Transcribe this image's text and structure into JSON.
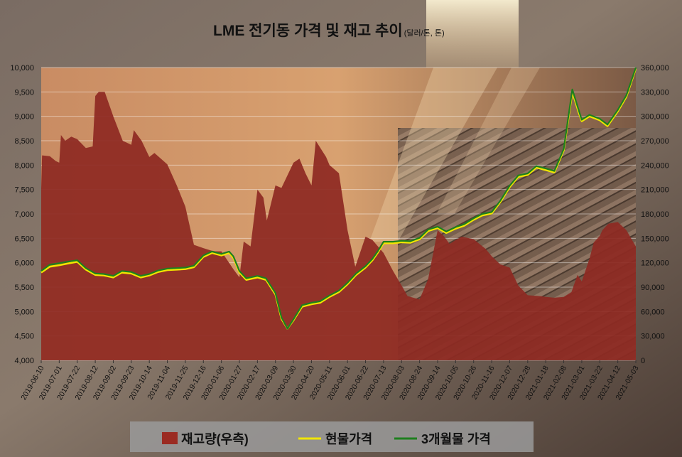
{
  "title": {
    "main": "LME 전기동 가격 및 재고 추이",
    "units": "(달러/톤, 톤)"
  },
  "legend": {
    "items": [
      {
        "label": "재고량(우측)",
        "color": "#9b2b22",
        "kind": "box"
      },
      {
        "label": "현물가격",
        "color": "#f2e600",
        "kind": "line"
      },
      {
        "label": "3개월물 가격",
        "color": "#1e7f1e",
        "kind": "line"
      }
    ]
  },
  "colors": {
    "inventory_fill": "#8e2a22",
    "spot_line": "#f2e600",
    "three_month_line": "#1e7f1e",
    "grid": "#ffffff",
    "axis_text": "#111111"
  },
  "chart_data": {
    "type": "area",
    "title": "LME 전기동 가격 및 재고 추이",
    "x_tick_labels": [
      "2019-06-10",
      "2019-07-01",
      "2019-07-22",
      "2019-08-12",
      "2019-09-02",
      "2019-09-23",
      "2019-10-14",
      "2019-11-04",
      "2019-11-25",
      "2019-12-16",
      "2020-01-06",
      "2020-01-27",
      "2020-02-17",
      "2020-03-09",
      "2020-03-30",
      "2020-04-20",
      "2020-05-11",
      "2020-06-01",
      "2020-06-22",
      "2020-07-13",
      "2020-08-03",
      "2020-08-24",
      "2020-09-14",
      "2020-10-05",
      "2020-10-26",
      "2020-11-16",
      "2020-12-07",
      "2020-12-28",
      "2021-01-18",
      "2021-02-08",
      "2021-03-01",
      "2021-03-22",
      "2021-04-12",
      "2021-05-03"
    ],
    "y_left": {
      "label": "",
      "range": [
        4000,
        10000
      ],
      "ticks": [
        "4,000",
        "4,500",
        "5,000",
        "5,500",
        "6,000",
        "6,500",
        "7,000",
        "7,500",
        "8,000",
        "8,500",
        "9,000",
        "9,500",
        "10,000"
      ]
    },
    "y_right": {
      "label": "",
      "range": [
        0,
        360000
      ],
      "ticks": [
        "0",
        "30,000",
        "60,000",
        "90,000",
        "120,000",
        "150,000",
        "180,000",
        "210,000",
        "240,000",
        "270,000",
        "300,000",
        "330,000",
        "360,000"
      ]
    },
    "grid": true,
    "legend_position": "bottom",
    "series": [
      {
        "name": "재고량(우측)",
        "axis": "right",
        "type": "area",
        "x": [
          "2019-06-10",
          "2019-06-11",
          "2019-06-20",
          "2019-06-27",
          "2019-07-01",
          "2019-07-03",
          "2019-07-08",
          "2019-07-15",
          "2019-07-22",
          "2019-08-01",
          "2019-08-09",
          "2019-08-12",
          "2019-08-16",
          "2019-08-23",
          "2019-09-02",
          "2019-09-13",
          "2019-09-23",
          "2019-09-26",
          "2019-10-05",
          "2019-10-14",
          "2019-10-20",
          "2019-11-04",
          "2019-11-15",
          "2019-11-25",
          "2019-12-05",
          "2019-12-16",
          "2019-12-25",
          "2019-12-30",
          "2020-01-06",
          "2020-01-20",
          "2020-01-27",
          "2020-02-01",
          "2020-02-09",
          "2020-02-17",
          "2020-02-24",
          "2020-02-28",
          "2020-03-09",
          "2020-03-16",
          "2020-03-30",
          "2020-04-06",
          "2020-04-13",
          "2020-04-20",
          "2020-04-25",
          "2020-05-07",
          "2020-05-11",
          "2020-05-22",
          "2020-06-01",
          "2020-06-10",
          "2020-06-22",
          "2020-06-30",
          "2020-07-13",
          "2020-07-24",
          "2020-08-03",
          "2020-08-10",
          "2020-08-20",
          "2020-08-24",
          "2020-09-03",
          "2020-09-14",
          "2020-09-21",
          "2020-09-28",
          "2020-10-05",
          "2020-10-12",
          "2020-10-26",
          "2020-11-09",
          "2020-11-16",
          "2020-11-26",
          "2020-12-07",
          "2020-12-17",
          "2020-12-28",
          "2021-01-11",
          "2021-01-18",
          "2021-01-28",
          "2021-02-08",
          "2021-02-17",
          "2021-02-24",
          "2021-03-01",
          "2021-03-10",
          "2021-03-15",
          "2021-03-22",
          "2021-03-25",
          "2021-04-01",
          "2021-04-12",
          "2021-04-22",
          "2021-05-03"
        ],
        "values": [
          211000,
          252000,
          251000,
          245000,
          243000,
          277000,
          270000,
          275000,
          272000,
          261000,
          263000,
          325000,
          330000,
          330000,
          300000,
          270000,
          265000,
          283000,
          270000,
          250000,
          255000,
          241000,
          215000,
          189000,
          142000,
          138000,
          135000,
          134000,
          134000,
          112000,
          102000,
          146000,
          140000,
          210000,
          200000,
          172000,
          215000,
          212000,
          243000,
          248000,
          230000,
          215000,
          270000,
          250000,
          240000,
          230000,
          160000,
          115000,
          152000,
          148000,
          132000,
          110000,
          92000,
          79000,
          76000,
          75000,
          100000,
          160000,
          153000,
          143000,
          148000,
          152000,
          149000,
          137000,
          128000,
          118000,
          114000,
          92000,
          80000,
          79000,
          78000,
          77000,
          78000,
          84000,
          105000,
          97000,
          125000,
          145000,
          153000,
          160000,
          168000,
          170000,
          160000,
          140000
        ]
      },
      {
        "name": "현물가격",
        "axis": "left",
        "type": "line",
        "x": [
          "2019-06-10",
          "2019-06-20",
          "2019-07-01",
          "2019-07-10",
          "2019-07-22",
          "2019-08-01",
          "2019-08-12",
          "2019-08-22",
          "2019-09-02",
          "2019-09-12",
          "2019-09-23",
          "2019-10-04",
          "2019-10-14",
          "2019-10-24",
          "2019-11-04",
          "2019-11-15",
          "2019-11-25",
          "2019-12-05",
          "2019-12-16",
          "2019-12-26",
          "2020-01-06",
          "2020-01-15",
          "2020-01-20",
          "2020-01-27",
          "2020-02-04",
          "2020-02-17",
          "2020-02-27",
          "2020-03-09",
          "2020-03-16",
          "2020-03-23",
          "2020-03-30",
          "2020-04-09",
          "2020-04-20",
          "2020-04-30",
          "2020-05-11",
          "2020-05-22",
          "2020-06-01",
          "2020-06-11",
          "2020-06-22",
          "2020-06-30",
          "2020-07-06",
          "2020-07-13",
          "2020-07-24",
          "2020-08-03",
          "2020-08-13",
          "2020-08-24",
          "2020-09-03",
          "2020-09-14",
          "2020-09-24",
          "2020-10-05",
          "2020-10-15",
          "2020-10-26",
          "2020-11-05",
          "2020-11-16",
          "2020-11-26",
          "2020-12-07",
          "2020-12-17",
          "2020-12-28",
          "2021-01-07",
          "2021-01-18",
          "2021-01-28",
          "2021-02-08",
          "2021-02-18",
          "2021-02-25",
          "2021-03-01",
          "2021-03-10",
          "2021-03-22",
          "2021-03-31",
          "2021-04-12",
          "2021-04-22",
          "2021-05-03"
        ],
        "values": [
          5800,
          5920,
          5950,
          5980,
          6020,
          5860,
          5750,
          5740,
          5700,
          5800,
          5780,
          5700,
          5740,
          5810,
          5850,
          5860,
          5870,
          5910,
          6120,
          6200,
          6150,
          6200,
          6100,
          5800,
          5650,
          5700,
          5650,
          5350,
          4850,
          4650,
          4820,
          5100,
          5150,
          5180,
          5300,
          5400,
          5560,
          5750,
          5900,
          6050,
          6200,
          6400,
          6400,
          6420,
          6410,
          6480,
          6650,
          6710,
          6610,
          6700,
          6760,
          6880,
          6970,
          7010,
          7240,
          7550,
          7760,
          7800,
          7950,
          7900,
          7850,
          8300,
          9500,
          9100,
          8900,
          9000,
          8920,
          8800,
          9100,
          9400,
          9980
        ]
      },
      {
        "name": "3개월물 가격",
        "axis": "left",
        "type": "line",
        "x": [
          "2019-06-10",
          "2019-06-20",
          "2019-07-01",
          "2019-07-10",
          "2019-07-22",
          "2019-08-01",
          "2019-08-12",
          "2019-08-22",
          "2019-09-02",
          "2019-09-12",
          "2019-09-23",
          "2019-10-04",
          "2019-10-14",
          "2019-10-24",
          "2019-11-04",
          "2019-11-15",
          "2019-11-25",
          "2019-12-05",
          "2019-12-16",
          "2019-12-26",
          "2020-01-06",
          "2020-01-15",
          "2020-01-20",
          "2020-01-27",
          "2020-02-04",
          "2020-02-17",
          "2020-02-27",
          "2020-03-09",
          "2020-03-16",
          "2020-03-23",
          "2020-03-30",
          "2020-04-09",
          "2020-04-20",
          "2020-04-30",
          "2020-05-11",
          "2020-05-22",
          "2020-06-01",
          "2020-06-11",
          "2020-06-22",
          "2020-06-30",
          "2020-07-06",
          "2020-07-13",
          "2020-07-24",
          "2020-08-03",
          "2020-08-13",
          "2020-08-24",
          "2020-09-03",
          "2020-09-14",
          "2020-09-24",
          "2020-10-05",
          "2020-10-15",
          "2020-10-26",
          "2020-11-05",
          "2020-11-16",
          "2020-11-26",
          "2020-12-07",
          "2020-12-17",
          "2020-12-28",
          "2021-01-07",
          "2021-01-18",
          "2021-01-28",
          "2021-02-08",
          "2021-02-18",
          "2021-02-25",
          "2021-03-01",
          "2021-03-10",
          "2021-03-22",
          "2021-03-31",
          "2021-04-12",
          "2021-04-22",
          "2021-05-03"
        ],
        "values": [
          5830,
          5960,
          5990,
          6020,
          6050,
          5890,
          5780,
          5770,
          5730,
          5830,
          5810,
          5730,
          5770,
          5840,
          5880,
          5890,
          5900,
          5940,
          6150,
          6230,
          6180,
          6230,
          6130,
          5830,
          5680,
          5730,
          5680,
          5380,
          4880,
          4650,
          4840,
          5130,
          5180,
          5210,
          5330,
          5430,
          5590,
          5780,
          5930,
          6080,
          6230,
          6430,
          6430,
          6450,
          6440,
          6510,
          6680,
          6740,
          6640,
          6730,
          6790,
          6910,
          7000,
          7040,
          7270,
          7580,
          7790,
          7830,
          7980,
          7930,
          7880,
          8330,
          9550,
          9150,
          8930,
          9030,
          8950,
          8830,
          9130,
          9430,
          10000
        ]
      }
    ]
  }
}
